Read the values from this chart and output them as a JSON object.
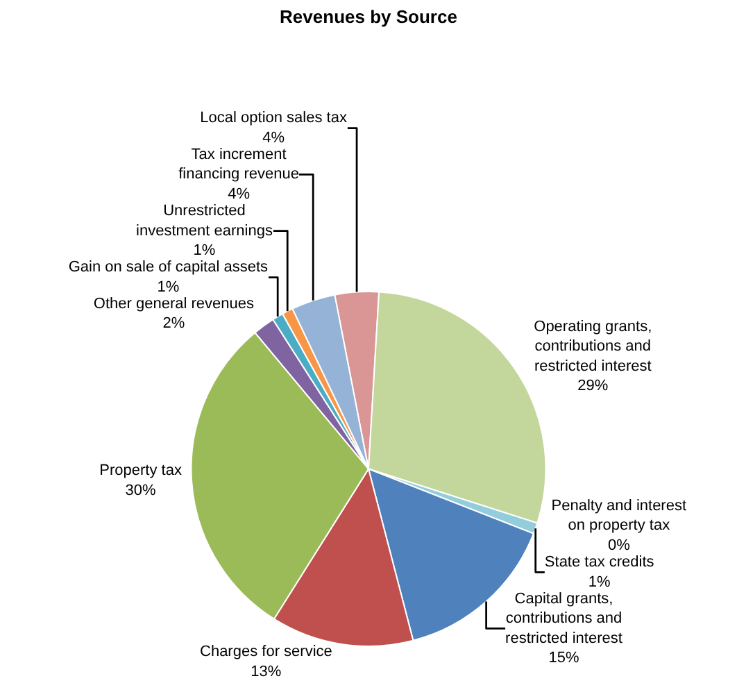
{
  "chart_data": {
    "type": "pie",
    "title": "Revenues by Source",
    "categories": [
      "Local option sales tax",
      "Operating grants, contributions and restricted interest",
      "Penalty and interest on property tax",
      "State tax credits",
      "Capital grants, contributions and restricted interest",
      "Charges for service",
      "Property tax",
      "Other general revenues",
      "Gain on sale of capital assets",
      "Unrestricted investment earnings",
      "Tax increment financing revenue"
    ],
    "values": [
      4,
      29,
      0,
      1,
      15,
      13,
      30,
      2,
      1,
      1,
      4
    ],
    "value_labels": [
      "4%",
      "29%",
      "0%",
      "1%",
      "15%",
      "13%",
      "30%",
      "2%",
      "1%",
      "1%",
      "4%"
    ],
    "colors": [
      "#d99694",
      "#c3d69b",
      "#b3a2c7",
      "#93cddd",
      "#4f81bd",
      "#c0504d",
      "#9bbb59",
      "#8064a2",
      "#4bacc6",
      "#f79646",
      "#95b3d7"
    ],
    "data_labels": true,
    "legend": false
  }
}
